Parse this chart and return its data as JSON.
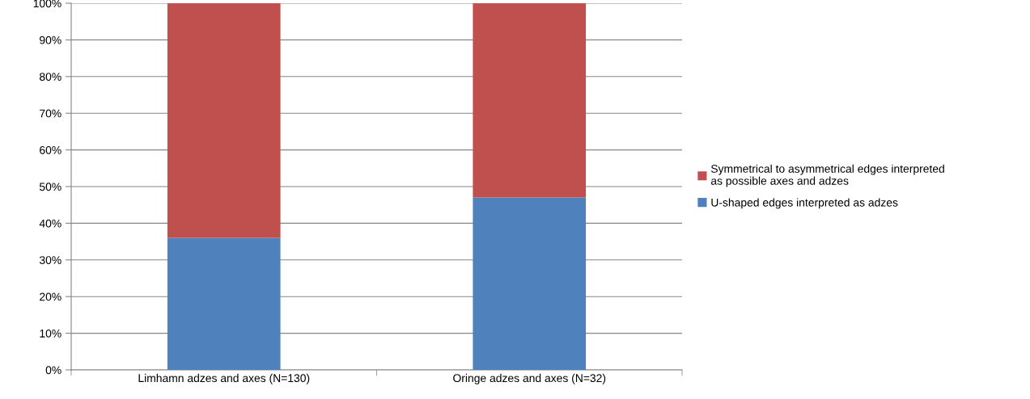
{
  "chart_data": {
    "type": "bar",
    "stacked": true,
    "categories": [
      "Limhamn adzes and axes (N=130)",
      "Oringe adzes and axes (N=32)"
    ],
    "series": [
      {
        "name": "U-shaped edges interpreted as adzes",
        "color": "#4f81bd",
        "values": [
          36,
          47
        ]
      },
      {
        "name": "Symmetrical to asymmetrical edges interpreted as possible axes and adzes",
        "color": "#c0504d",
        "values": [
          64,
          53
        ]
      }
    ],
    "ylim": [
      0,
      100
    ],
    "yticks": [
      {
        "value": 0,
        "label": "0%"
      },
      {
        "value": 10,
        "label": "10%"
      },
      {
        "value": 20,
        "label": "20%"
      },
      {
        "value": 30,
        "label": "30%"
      },
      {
        "value": 40,
        "label": "40%"
      },
      {
        "value": 50,
        "label": "50%"
      },
      {
        "value": 60,
        "label": "60%"
      },
      {
        "value": 70,
        "label": "70%"
      },
      {
        "value": 80,
        "label": "80%"
      },
      {
        "value": 90,
        "label": "90%"
      },
      {
        "value": 100,
        "label": "100%"
      }
    ],
    "grid": "y",
    "legend": "right"
  }
}
